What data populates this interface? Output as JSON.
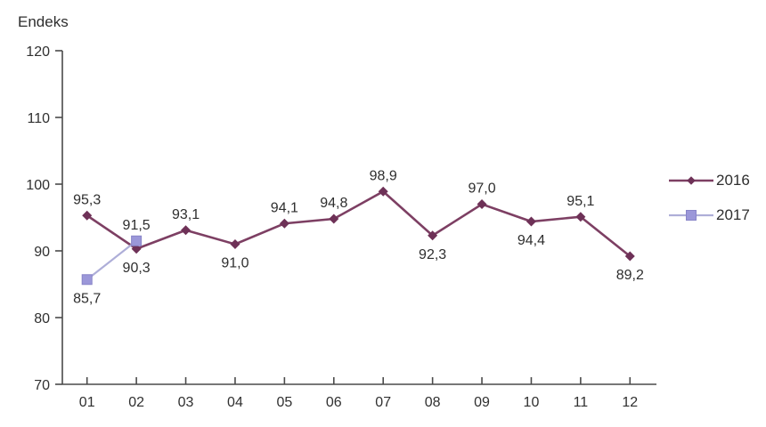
{
  "chart_data": {
    "type": "line",
    "ylabel": "Endeks",
    "xlabel": "",
    "title": "",
    "categories": [
      "01",
      "02",
      "03",
      "04",
      "05",
      "06",
      "07",
      "08",
      "09",
      "10",
      "11",
      "12"
    ],
    "ylim": [
      70,
      120
    ],
    "ytick_step": 10,
    "yticks": [
      70,
      80,
      90,
      100,
      110,
      120
    ],
    "grid": false,
    "legend_position": "right",
    "decimal_separator": ",",
    "axis_color": "#4a4a4a",
    "text_color": "#2e2e2e",
    "series": [
      {
        "name": "2016",
        "color": "#7d3f63",
        "marker": "diamond",
        "marker_color": "#6e3157",
        "line_width": 2.6,
        "values": [
          95.3,
          90.3,
          93.1,
          91.0,
          94.1,
          94.8,
          98.9,
          92.3,
          97.0,
          94.4,
          95.1,
          89.2
        ],
        "labels": [
          "95,3",
          "90,3",
          "93,1",
          "91,0",
          "94,1",
          "94,8",
          "98,9",
          "92,3",
          "97,0",
          "94,4",
          "95,1",
          "89,2"
        ],
        "label_positions": [
          "above",
          "below",
          "above",
          "below",
          "above",
          "above",
          "above",
          "below",
          "above",
          "below",
          "above",
          "below"
        ]
      },
      {
        "name": "2017",
        "color": "#aeaed8",
        "marker": "square",
        "marker_color": "#9b97d9",
        "marker_stroke": "#8884c8",
        "line_width": 2.2,
        "values": [
          85.7,
          91.5
        ],
        "labels": [
          "85,7",
          "91,5"
        ],
        "label_positions": [
          "below",
          "above"
        ]
      }
    ]
  }
}
